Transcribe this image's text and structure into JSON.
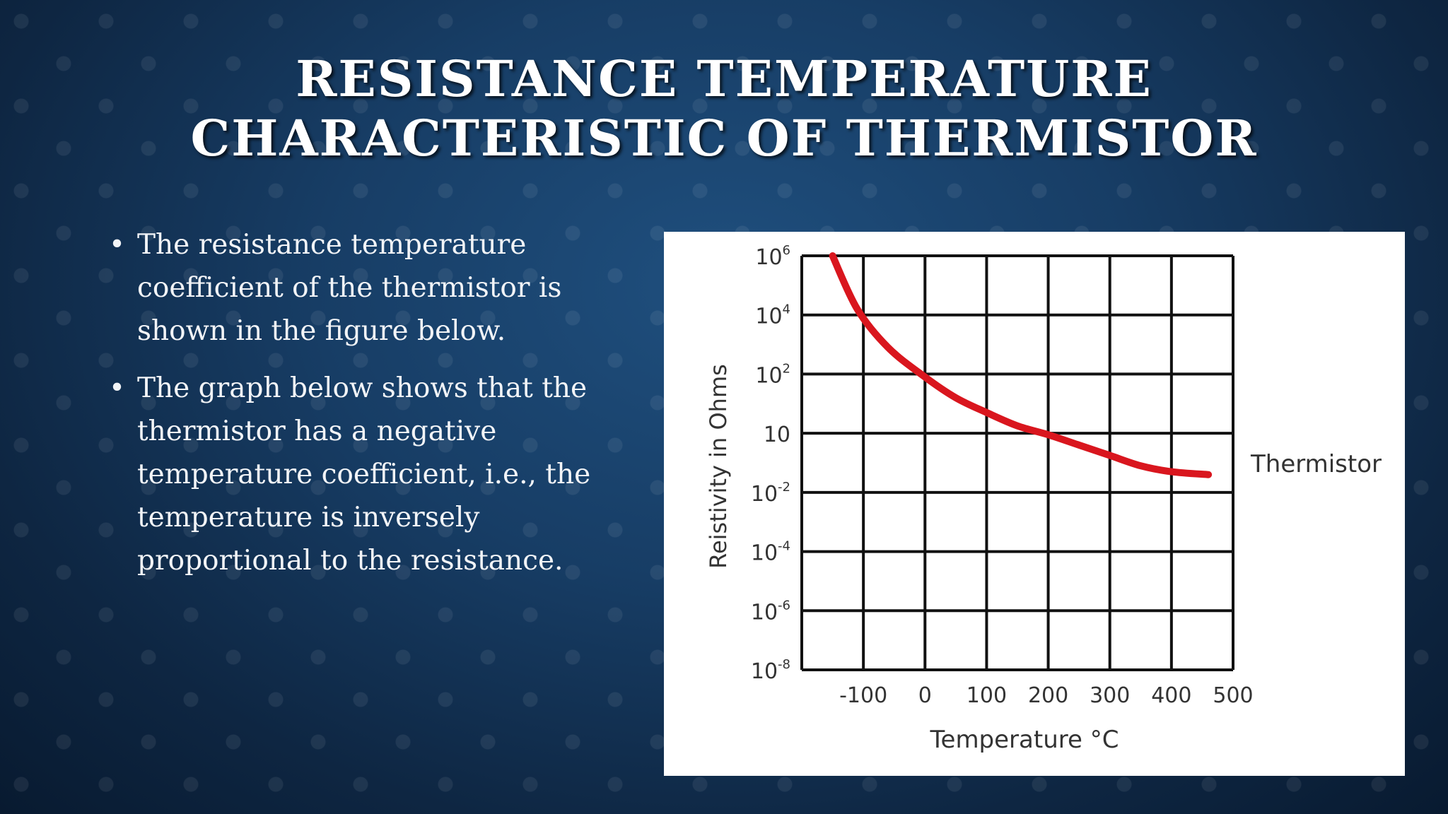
{
  "slide": {
    "title_lines": [
      "RESISTANCE TEMPERATURE",
      "CHARACTERISTIC OF THERMISTOR"
    ],
    "bullets": [
      "The resistance temperature coefficient of the thermistor is shown in the figure below.",
      "The graph below shows that the thermistor has a negative temperature coefficient, i.e., the temperature is inversely proportional to the resistance."
    ]
  },
  "colors": {
    "curve": "#d9161e",
    "grid": "#111111",
    "panel": "#ffffff"
  },
  "chart_data": {
    "type": "line",
    "title": "",
    "xlabel": "Temperature °C",
    "ylabel": "Reistivity in Ohms",
    "x_ticks": [
      "-100",
      "0",
      "100",
      "200",
      "300",
      "400",
      "500"
    ],
    "y_ticks": [
      {
        "base": "10",
        "exp": "-8"
      },
      {
        "base": "10",
        "exp": "-6"
      },
      {
        "base": "10",
        "exp": "-4"
      },
      {
        "base": "10",
        "exp": "-2"
      },
      {
        "base": "10",
        "exp": ""
      },
      {
        "base": "10",
        "exp": "2"
      },
      {
        "base": "10",
        "exp": "4"
      },
      {
        "base": "10",
        "exp": "6"
      }
    ],
    "xlim": [
      -200,
      500
    ],
    "y_log_exponent_lim": [
      -8,
      6
    ],
    "grid": true,
    "series": [
      {
        "name": "Thermistor",
        "x": [
          -150,
          -110,
          -60,
          0,
          50,
          100,
          150,
          200,
          250,
          300,
          350,
          400,
          460
        ],
        "y_log_exponent": [
          6.0,
          4.2,
          2.9,
          1.9,
          1.2,
          0.7,
          0.25,
          -0.05,
          -0.4,
          -0.75,
          -1.1,
          -1.3,
          -1.4
        ]
      }
    ]
  }
}
